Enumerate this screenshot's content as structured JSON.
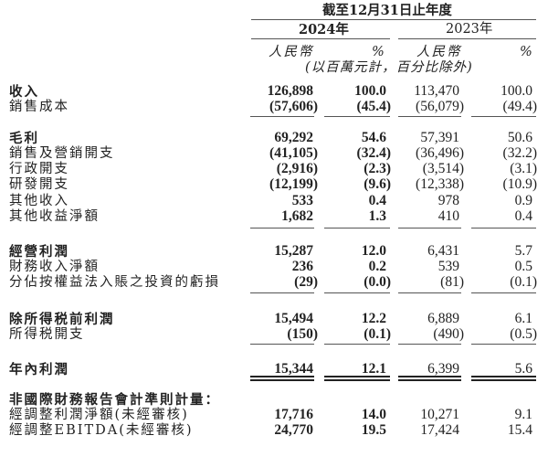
{
  "header": {
    "period": "截至12月31日止年度",
    "years": [
      "2024年",
      "2023年"
    ],
    "currency": "人民幣",
    "percent": "%",
    "unit_note": "(以百萬元計，百分比除外)"
  },
  "rows": [
    {
      "label": "收入",
      "bold": true,
      "values": [
        "126,898",
        "100.0",
        "113,470",
        "100.0"
      ]
    },
    {
      "label": "銷售成本",
      "bold": false,
      "values": [
        "(57,606)",
        "(45.4)",
        "(56,079)",
        "(49.4)"
      ]
    },
    {
      "label": "毛利",
      "bold": true,
      "values": [
        "69,292",
        "54.6",
        "57,391",
        "50.6"
      ]
    },
    {
      "label": "銷售及營銷開支",
      "bold": false,
      "values": [
        "(41,105)",
        "(32.4)",
        "(36,496)",
        "(32.2)"
      ]
    },
    {
      "label": "行政開支",
      "bold": false,
      "values": [
        "(2,916)",
        "(2.3)",
        "(3,514)",
        "(3.1)"
      ]
    },
    {
      "label": "研發開支",
      "bold": false,
      "values": [
        "(12,199)",
        "(9.6)",
        "(12,338)",
        "(10.9)"
      ]
    },
    {
      "label": "其他收入",
      "bold": false,
      "values": [
        "533",
        "0.4",
        "978",
        "0.9"
      ]
    },
    {
      "label": "其他收益淨額",
      "bold": false,
      "values": [
        "1,682",
        "1.3",
        "410",
        "0.4"
      ]
    },
    {
      "label": "經營利潤",
      "bold": true,
      "values": [
        "15,287",
        "12.0",
        "6,431",
        "5.7"
      ]
    },
    {
      "label": "財務收入淨額",
      "bold": false,
      "values": [
        "236",
        "0.2",
        "539",
        "0.5"
      ]
    },
    {
      "label": "分佔按權益法入賬之投資的虧損",
      "bold": false,
      "values": [
        "(29)",
        "(0.0)",
        "(81)",
        "(0.1)"
      ]
    },
    {
      "label": "除所得税前利潤",
      "bold": true,
      "values": [
        "15,494",
        "12.2",
        "6,889",
        "6.1"
      ]
    },
    {
      "label": "所得税開支",
      "bold": false,
      "values": [
        "(150)",
        "(0.1)",
        "(490)",
        "(0.5)"
      ]
    },
    {
      "label": "年內利潤",
      "bold": true,
      "values": [
        "15,344",
        "12.1",
        "6,399",
        "5.6"
      ]
    },
    {
      "label": "非國際財務報告會計準則計量：",
      "bold": true,
      "values": []
    },
    {
      "label": "經調整利潤淨額(未經審核)",
      "bold": false,
      "values": [
        "17,716",
        "14.0",
        "10,271",
        "9.1"
      ]
    },
    {
      "label": "經調整EBITDA(未經審核)",
      "bold": false,
      "values": [
        "24,770",
        "19.5",
        "17,424",
        "15.4"
      ]
    }
  ]
}
